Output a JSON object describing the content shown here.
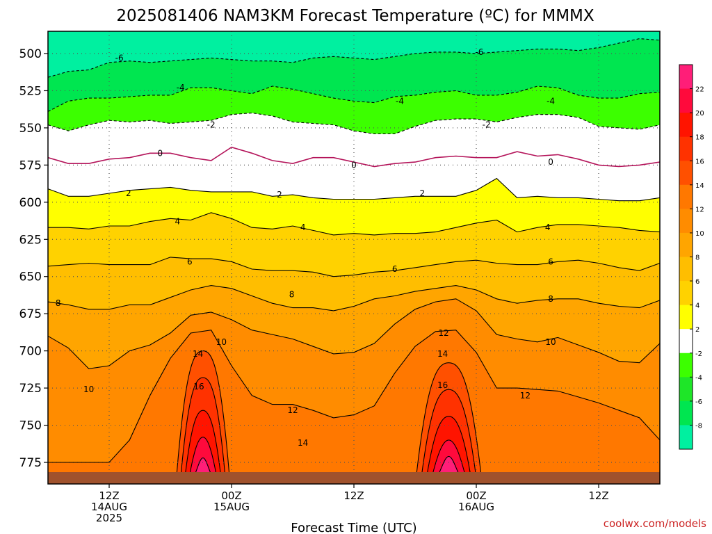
{
  "title": "2025081406 NAM3KM Forecast Temperature (ºC) for MMMX",
  "watermark": "coolwx.com/models",
  "watermark_color": "#cc2222",
  "chart_data": {
    "type": "heatmap",
    "title": "2025081406 NAM3KM Forecast Temperature (ºC) for MMMX",
    "xlabel": "Forecast Time (UTC)",
    "ylabel": "",
    "x_ticks": [
      {
        "t": 6,
        "line1": "12Z",
        "line2": "14AUG",
        "line3": "2025"
      },
      {
        "t": 18,
        "line1": "00Z",
        "line2": "15AUG",
        "line3": ""
      },
      {
        "t": 30,
        "line1": "12Z",
        "line2": "",
        "line3": ""
      },
      {
        "t": 42,
        "line1": "00Z",
        "line2": "16AUG",
        "line3": ""
      },
      {
        "t": 54,
        "line1": "12Z",
        "line2": "",
        "line3": ""
      }
    ],
    "xlim": [
      0,
      60
    ],
    "y_ticks": [
      "500",
      "525",
      "550",
      "575",
      "600",
      "625",
      "650",
      "675",
      "700",
      "725",
      "750",
      "775"
    ],
    "ylim": [
      480,
      785
    ],
    "grid": true,
    "colorbar": {
      "labels": [
        "22",
        "20",
        "18",
        "16",
        "14",
        "12",
        "10",
        "8",
        "6",
        "4",
        "2",
        "-2",
        "-4",
        "-6",
        "-8"
      ],
      "colors": [
        "#ff1e78",
        "#ff0a3c",
        "#ff1400",
        "#ff3200",
        "#ff5000",
        "#ff7800",
        "#ff8c00",
        "#ffa500",
        "#ffbe00",
        "#ffd200",
        "#ffff00",
        "#ffffff",
        "#3cff00",
        "#1ee628",
        "#00e650",
        "#00f0a0"
      ]
    },
    "contours": [
      {
        "level": -6,
        "color": "#000000",
        "dashed": true,
        "y": [
          516,
          512,
          511,
          506,
          505,
          506,
          505,
          504,
          503,
          504,
          505,
          505,
          506,
          503,
          502,
          503,
          504,
          502,
          500,
          499,
          499,
          500,
          499,
          498,
          497,
          497,
          498,
          496,
          493,
          490,
          491
        ]
      },
      {
        "level": -4,
        "color": "#000000",
        "dashed": true,
        "y": [
          539,
          532,
          530,
          530,
          529,
          528,
          528,
          523,
          523,
          525,
          527,
          522,
          524,
          527,
          530,
          532,
          533,
          529,
          528,
          526,
          525,
          528,
          528,
          526,
          522,
          523,
          528,
          530,
          530,
          527,
          526
        ]
      },
      {
        "level": -2,
        "color": "#000000",
        "dashed": true,
        "y": [
          548,
          552,
          548,
          545,
          546,
          545,
          547,
          546,
          545,
          541,
          540,
          542,
          546,
          547,
          548,
          552,
          554,
          554,
          549,
          545,
          544,
          544,
          546,
          543,
          541,
          541,
          543,
          549,
          550,
          551,
          548
        ]
      },
      {
        "level": 0,
        "color": "#b4145a",
        "dashed": false,
        "y": [
          570,
          574,
          574,
          571,
          570,
          567,
          567,
          570,
          572,
          563,
          567,
          572,
          574,
          570,
          570,
          573,
          576,
          574,
          573,
          570,
          569,
          570,
          570,
          566,
          569,
          568,
          571,
          575,
          576,
          575,
          573
        ]
      },
      {
        "level": 2,
        "color": "#000000",
        "dashed": false,
        "y": [
          591,
          596,
          596,
          594,
          592,
          591,
          590,
          592,
          593,
          593,
          593,
          596,
          595,
          597,
          598,
          598,
          598,
          597,
          596,
          596,
          596,
          592,
          584,
          597,
          596,
          597,
          597,
          598,
          599,
          599,
          597
        ]
      },
      {
        "level": 4,
        "color": "#000000",
        "dashed": false,
        "y": [
          617,
          617,
          618,
          616,
          616,
          613,
          611,
          612,
          607,
          611,
          617,
          618,
          616,
          619,
          622,
          621,
          622,
          621,
          621,
          620,
          617,
          614,
          612,
          620,
          617,
          615,
          615,
          616,
          617,
          619,
          620
        ]
      },
      {
        "level": 6,
        "color": "#000000",
        "dashed": false,
        "y": [
          643,
          642,
          641,
          642,
          642,
          642,
          637,
          638,
          638,
          640,
          645,
          646,
          646,
          647,
          650,
          649,
          647,
          646,
          644,
          642,
          640,
          639,
          641,
          642,
          642,
          640,
          639,
          641,
          644,
          646,
          641
        ]
      },
      {
        "level": 8,
        "color": "#000000",
        "dashed": false,
        "y": [
          667,
          669,
          672,
          672,
          669,
          669,
          664,
          659,
          656,
          658,
          663,
          668,
          671,
          671,
          673,
          670,
          665,
          663,
          660,
          658,
          656,
          659,
          665,
          668,
          666,
          665,
          665,
          668,
          670,
          671,
          666
        ]
      },
      {
        "level": 10,
        "color": "#000000",
        "dashed": false,
        "y": [
          690,
          698,
          712,
          710,
          700,
          696,
          688,
          676,
          674,
          679,
          686,
          689,
          692,
          697,
          702,
          701,
          695,
          682,
          672,
          667,
          665,
          673,
          689,
          692,
          694,
          691,
          696,
          701,
          707,
          708,
          695
        ]
      },
      {
        "level": 12,
        "color": "#000000",
        "dashed": false,
        "y": [
          775,
          775,
          775,
          775,
          760,
          730,
          705,
          688,
          686,
          710,
          730,
          736,
          736,
          740,
          745,
          743,
          737,
          715,
          697,
          687,
          686,
          701,
          725,
          725,
          726,
          727,
          731,
          735,
          740,
          745,
          760
        ]
      }
    ],
    "warm_peaks": [
      {
        "t": 15.2,
        "half_width": 2.6,
        "levels": [
          14,
          16,
          18,
          20,
          22
        ],
        "top_y": [
          700,
          718,
          740,
          758,
          772
        ]
      },
      {
        "t": 39.3,
        "half_width": 3.2,
        "levels": [
          14,
          16,
          18,
          20,
          22
        ],
        "top_y": [
          708,
          726,
          744,
          760,
          771
        ]
      }
    ],
    "contour_labels": [
      {
        "t": 7.0,
        "p": 503,
        "text": "-6"
      },
      {
        "t": 42.3,
        "p": 499,
        "text": "-6"
      },
      {
        "t": 13.0,
        "p": 523,
        "text": "-4"
      },
      {
        "t": 34.5,
        "p": 532,
        "text": "-4"
      },
      {
        "t": 49.3,
        "p": 532,
        "text": "-4"
      },
      {
        "t": 16.0,
        "p": 548,
        "text": "-2"
      },
      {
        "t": 43.0,
        "p": 548,
        "text": "-2"
      },
      {
        "t": 11.0,
        "p": 567,
        "text": "0"
      },
      {
        "t": 30.0,
        "p": 575,
        "text": "0"
      },
      {
        "t": 49.3,
        "p": 573,
        "text": "0"
      },
      {
        "t": 7.9,
        "p": 594,
        "text": "2"
      },
      {
        "t": 22.7,
        "p": 595,
        "text": "2"
      },
      {
        "t": 36.7,
        "p": 594,
        "text": "2"
      },
      {
        "t": 12.7,
        "p": 613,
        "text": "4"
      },
      {
        "t": 25.0,
        "p": 617,
        "text": "4"
      },
      {
        "t": 49.0,
        "p": 617,
        "text": "4"
      },
      {
        "t": 13.9,
        "p": 640,
        "text": "6"
      },
      {
        "t": 34.0,
        "p": 645,
        "text": "6"
      },
      {
        "t": 49.3,
        "p": 640,
        "text": "6"
      },
      {
        "t": 1.0,
        "p": 668,
        "text": "8"
      },
      {
        "t": 23.9,
        "p": 662,
        "text": "8"
      },
      {
        "t": 49.3,
        "p": 665,
        "text": "8"
      },
      {
        "t": 17.0,
        "p": 694,
        "text": "10"
      },
      {
        "t": 4.0,
        "p": 726,
        "text": "10"
      },
      {
        "t": 49.3,
        "p": 694,
        "text": "10"
      },
      {
        "t": 24.0,
        "p": 740,
        "text": "12"
      },
      {
        "t": 38.8,
        "p": 688,
        "text": "12"
      },
      {
        "t": 46.8,
        "p": 730,
        "text": "12"
      },
      {
        "t": 14.7,
        "p": 702,
        "text": "14"
      },
      {
        "t": 38.7,
        "p": 702,
        "text": "14"
      },
      {
        "t": 25.0,
        "p": 762,
        "text": "14"
      },
      {
        "t": 14.8,
        "p": 724,
        "text": "16"
      },
      {
        "t": 38.7,
        "p": 723,
        "text": "16"
      }
    ]
  }
}
